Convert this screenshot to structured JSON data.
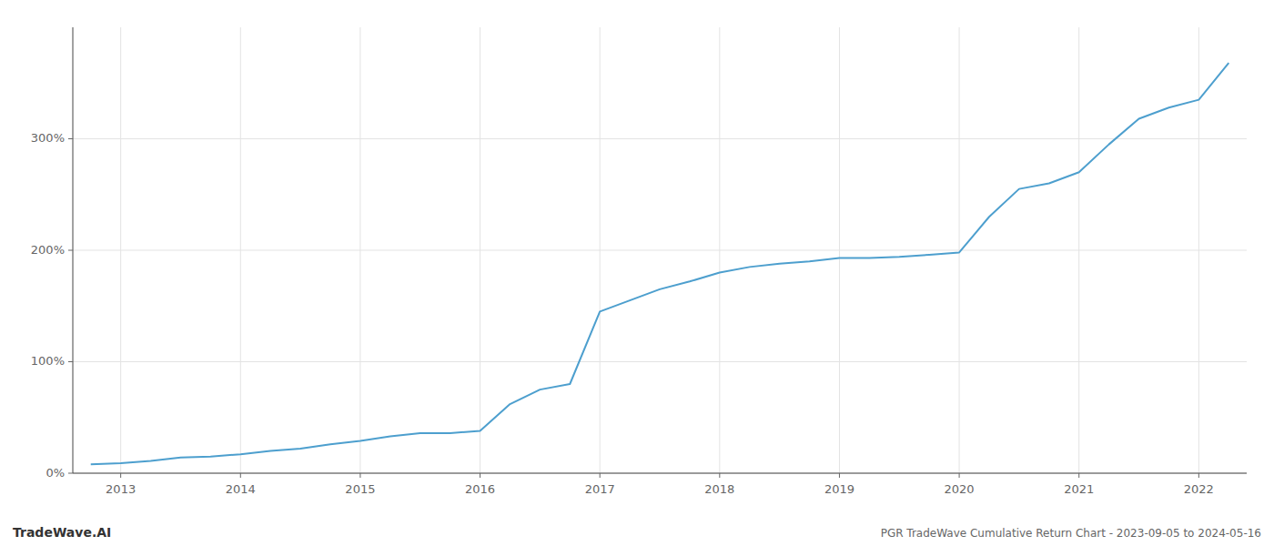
{
  "chart_data": {
    "type": "line",
    "title": "PGR TradeWave Cumulative Return Chart - 2023-09-05 to 2024-05-16",
    "annotations": [
      "TradeWave.AI"
    ],
    "color": "#4d9fce",
    "grid": true,
    "x": [
      2012.75,
      2013.0,
      2013.25,
      2013.5,
      2013.75,
      2014.0,
      2014.25,
      2014.5,
      2014.75,
      2015.0,
      2015.25,
      2015.5,
      2015.75,
      2016.0,
      2016.25,
      2016.5,
      2016.75,
      2017.0,
      2017.25,
      2017.5,
      2017.75,
      2018.0,
      2018.25,
      2018.5,
      2018.75,
      2019.0,
      2019.25,
      2019.5,
      2019.75,
      2020.0,
      2020.25,
      2020.5,
      2020.75,
      2021.0,
      2021.25,
      2021.5,
      2021.75,
      2022.0,
      2022.25
    ],
    "values": [
      8,
      9,
      11,
      14,
      15,
      17,
      20,
      22,
      26,
      29,
      33,
      36,
      36,
      38,
      62,
      75,
      80,
      145,
      155,
      165,
      172,
      180,
      185,
      188,
      190,
      193,
      193,
      194,
      196,
      198,
      230,
      255,
      260,
      270,
      295,
      318,
      328,
      335,
      368
    ],
    "xlim": [
      2012.6,
      2022.4
    ],
    "xticks": [
      2013,
      2014,
      2015,
      2016,
      2017,
      2018,
      2019,
      2020,
      2021,
      2022
    ],
    "ylim": [
      0,
      400
    ],
    "yticks": [
      {
        "value": 0,
        "label": "0%"
      },
      {
        "value": 100,
        "label": "100%"
      },
      {
        "value": 200,
        "label": "200%"
      },
      {
        "value": 300,
        "label": "300%"
      }
    ]
  }
}
